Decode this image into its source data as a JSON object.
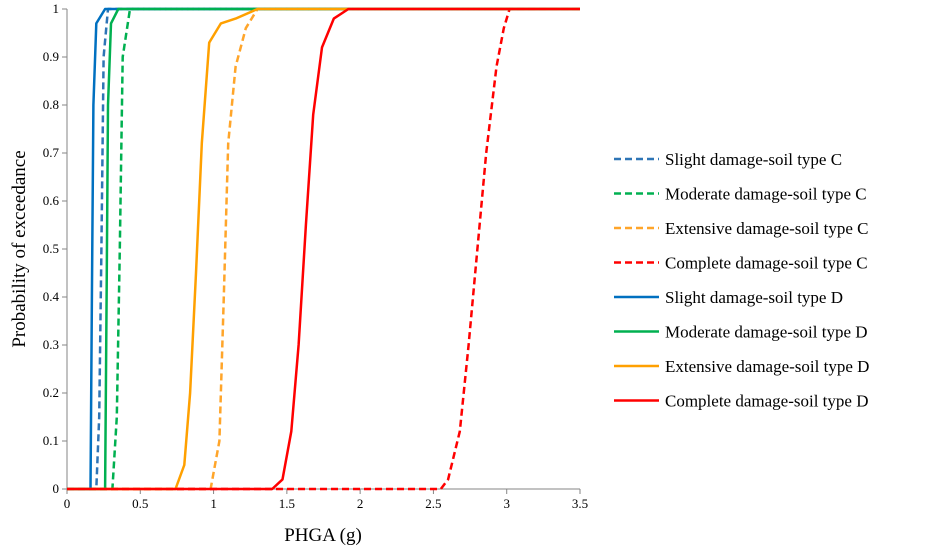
{
  "chart_data": {
    "type": "line",
    "title": "",
    "xlabel": "PHGA (g)",
    "ylabel": "Probability of exceedance",
    "xlim": [
      0,
      3.5
    ],
    "ylim": [
      0,
      1
    ],
    "x_ticks": [
      "0",
      "0.5",
      "1",
      "1.5",
      "2",
      "2.5",
      "3",
      "3.5"
    ],
    "y_ticks": [
      "0",
      "0.1",
      "0.2",
      "0.3",
      "0.4",
      "0.5",
      "0.6",
      "0.7",
      "0.8",
      "0.9",
      "1"
    ],
    "grid": false,
    "legend_position": "right",
    "series": [
      {
        "name": "Slight damage-soil type C",
        "color": "#2E75B6",
        "dash": true,
        "points": [
          [
            0,
            0
          ],
          [
            0.2,
            0
          ],
          [
            0.22,
            0.15
          ],
          [
            0.235,
            0.5
          ],
          [
            0.25,
            0.9
          ],
          [
            0.28,
            1
          ],
          [
            3.5,
            1
          ]
        ]
      },
      {
        "name": "Moderate damage-soil type C",
        "color": "#00B050",
        "dash": true,
        "points": [
          [
            0,
            0
          ],
          [
            0.31,
            0
          ],
          [
            0.34,
            0.15
          ],
          [
            0.36,
            0.5
          ],
          [
            0.38,
            0.9
          ],
          [
            0.43,
            1
          ],
          [
            3.5,
            1
          ]
        ]
      },
      {
        "name": "Extensive damage-soil type C",
        "color": "#FFA52A",
        "dash": true,
        "points": [
          [
            0,
            0
          ],
          [
            0.98,
            0
          ],
          [
            1.04,
            0.1
          ],
          [
            1.07,
            0.4
          ],
          [
            1.1,
            0.72
          ],
          [
            1.15,
            0.88
          ],
          [
            1.22,
            0.96
          ],
          [
            1.3,
            1
          ],
          [
            3.5,
            1
          ]
        ]
      },
      {
        "name": "Complete damage-soil type C",
        "color": "#FF0000",
        "dash": true,
        "points": [
          [
            0,
            0
          ],
          [
            2.55,
            0
          ],
          [
            2.6,
            0.02
          ],
          [
            2.68,
            0.12
          ],
          [
            2.74,
            0.3
          ],
          [
            2.8,
            0.5
          ],
          [
            2.86,
            0.7
          ],
          [
            2.93,
            0.88
          ],
          [
            2.98,
            0.96
          ],
          [
            3.02,
            1
          ],
          [
            3.5,
            1
          ]
        ]
      },
      {
        "name": "Slight damage-soil type D",
        "color": "#0070C0",
        "dash": false,
        "points": [
          [
            0,
            0
          ],
          [
            0.16,
            0
          ],
          [
            0.17,
            0.4
          ],
          [
            0.18,
            0.8
          ],
          [
            0.2,
            0.97
          ],
          [
            0.26,
            1
          ],
          [
            3.5,
            1
          ]
        ]
      },
      {
        "name": "Moderate damage-soil type D",
        "color": "#00B050",
        "dash": false,
        "points": [
          [
            0,
            0
          ],
          [
            0.26,
            0
          ],
          [
            0.27,
            0.4
          ],
          [
            0.28,
            0.8
          ],
          [
            0.3,
            0.97
          ],
          [
            0.35,
            1
          ],
          [
            3.5,
            1
          ]
        ]
      },
      {
        "name": "Extensive damage-soil type D",
        "color": "#FFA000",
        "dash": false,
        "points": [
          [
            0,
            0
          ],
          [
            0.74,
            0
          ],
          [
            0.8,
            0.05
          ],
          [
            0.84,
            0.2
          ],
          [
            0.88,
            0.45
          ],
          [
            0.92,
            0.72
          ],
          [
            0.97,
            0.93
          ],
          [
            1.05,
            0.97
          ],
          [
            1.15,
            0.98
          ],
          [
            1.3,
            1
          ],
          [
            3.5,
            1
          ]
        ]
      },
      {
        "name": "Complete damage-soil type D",
        "color": "#FF0000",
        "dash": false,
        "points": [
          [
            0,
            0
          ],
          [
            1.4,
            0
          ],
          [
            1.47,
            0.02
          ],
          [
            1.53,
            0.12
          ],
          [
            1.58,
            0.3
          ],
          [
            1.63,
            0.55
          ],
          [
            1.68,
            0.78
          ],
          [
            1.74,
            0.92
          ],
          [
            1.82,
            0.98
          ],
          [
            1.92,
            1
          ],
          [
            3.5,
            1
          ]
        ]
      }
    ]
  }
}
